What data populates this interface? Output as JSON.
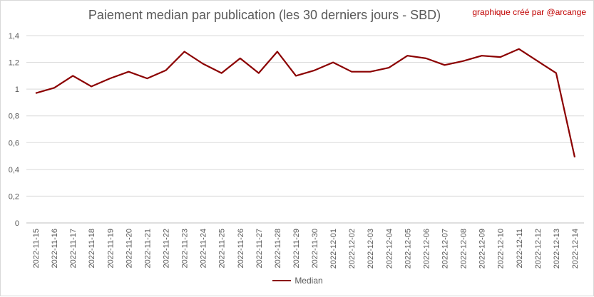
{
  "chart_data": {
    "type": "line",
    "title": "Paiement median par publication (les 30 derniers jours - SBD)",
    "credit": "graphique créé par @arcange",
    "xlabel": "",
    "ylabel": "",
    "ylim": [
      0,
      1.4
    ],
    "yticks": [
      "0",
      "0,2",
      "0,4",
      "0,6",
      "0,8",
      "1",
      "1,2",
      "1,4"
    ],
    "grid": true,
    "legend_position": "bottom",
    "categories": [
      "2022-11-15",
      "2022-11-16",
      "2022-11-17",
      "2022-11-18",
      "2022-11-19",
      "2022-11-20",
      "2022-11-21",
      "2022-11-22",
      "2022-11-23",
      "2022-11-24",
      "2022-11-25",
      "2022-11-26",
      "2022-11-27",
      "2022-11-28",
      "2022-11-29",
      "2022-11-30",
      "2022-12-01",
      "2022-12-02",
      "2022-12-03",
      "2022-12-04",
      "2022-12-05",
      "2022-12-06",
      "2022-12-07",
      "2022-12-08",
      "2022-12-09",
      "2022-12-10",
      "2022-12-11",
      "2022-12-12",
      "2022-12-13",
      "2022-12-14"
    ],
    "series": [
      {
        "name": "Median",
        "color": "#8b0000",
        "values": [
          0.97,
          1.01,
          1.1,
          1.02,
          1.08,
          1.13,
          1.08,
          1.14,
          1.28,
          1.19,
          1.12,
          1.23,
          1.12,
          1.28,
          1.1,
          1.14,
          1.2,
          1.13,
          1.13,
          1.16,
          1.25,
          1.23,
          1.18,
          1.21,
          1.25,
          1.24,
          1.3,
          1.21,
          1.12,
          0.49
        ]
      }
    ]
  }
}
